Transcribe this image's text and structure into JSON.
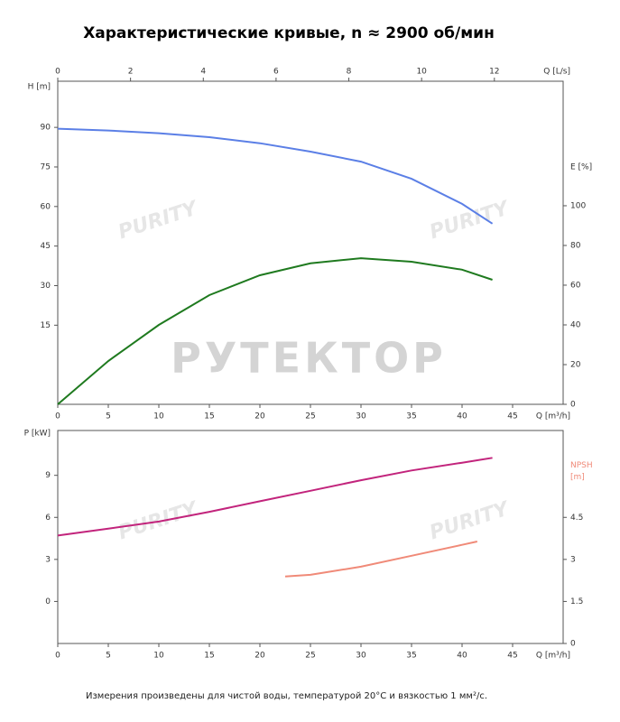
{
  "title": "Характеристические кривые, n ≈ 2900 об/мин",
  "footnote": "Измерения произведены для чистой воды, температурой 20°C и вязкостью 1 мм²/с.",
  "watermarks": [
    "РУТЕКТОР",
    "PURITY"
  ],
  "chart_data": [
    {
      "type": "line",
      "x": [
        0,
        5,
        10,
        15,
        20,
        25,
        30,
        35,
        40,
        43
      ],
      "xlim": [
        0,
        50
      ],
      "xticks": [
        0,
        5,
        10,
        15,
        20,
        25,
        30,
        35,
        40,
        45
      ],
      "xlabel": "Q [m³/h]",
      "x2lim": [
        0,
        13.89
      ],
      "x2ticks": [
        0,
        2,
        4,
        6,
        8,
        10,
        12
      ],
      "x2label": "Q [L/s]",
      "ylabel": "H [m]",
      "ylim": [
        -15,
        107.5
      ],
      "yticks": [
        15,
        30,
        45,
        60,
        75,
        90
      ],
      "y2label": "E [%]",
      "y2lim": [
        0,
        162.7
      ],
      "y2ticks": [
        0,
        20,
        40,
        60,
        80,
        100
      ],
      "series": [
        {
          "color": "#5b7fe6",
          "values": [
            89.5,
            88.8,
            87.8,
            86.3,
            84,
            80.8,
            77,
            70.5,
            61,
            53.5
          ]
        },
        {
          "color": "#1f7a1f",
          "axis": "y2",
          "values": [
            0,
            21.8,
            40,
            55,
            65,
            71,
            73.6,
            71.8,
            67.8,
            62.7
          ]
        }
      ]
    },
    {
      "type": "line",
      "x": [
        0,
        5,
        10,
        15,
        20,
        25,
        30,
        35,
        40,
        43
      ],
      "xlim": [
        0,
        50
      ],
      "xticks": [
        0,
        5,
        10,
        15,
        20,
        25,
        30,
        35,
        40,
        45
      ],
      "xlabel": "Q [m³/h]",
      "ylabel": "P [kW]",
      "ylim": [
        -3,
        12.2
      ],
      "yticks": [
        0,
        3,
        6,
        9
      ],
      "y2label": "NPSH [m]",
      "y2lim": [
        0,
        7.6
      ],
      "y2ticks": [
        0,
        1.5,
        3,
        4.5
      ],
      "series": [
        {
          "color": "#c2247c",
          "values": [
            4.7,
            5.2,
            5.7,
            6.4,
            7.15,
            7.9,
            8.65,
            9.35,
            9.9,
            10.25
          ]
        },
        {
          "color": "#f08a78",
          "axis": "y2",
          "x": [
            22.5,
            25,
            30,
            35,
            40,
            41.5
          ],
          "values": [
            2.39,
            2.45,
            2.74,
            3.13,
            3.52,
            3.64
          ]
        }
      ]
    }
  ]
}
